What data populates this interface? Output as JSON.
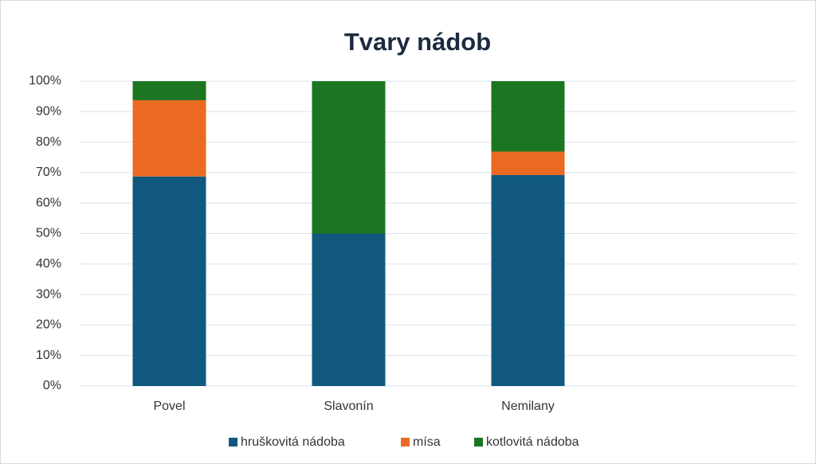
{
  "chart_data": {
    "type": "bar",
    "stacked": true,
    "title": "Tvary nádob",
    "categories": [
      "Povel",
      "Slavonín",
      "Nemilany",
      null
    ],
    "series": [
      {
        "name": "hruškovitá nádoba",
        "color": "#11587f",
        "values": [
          68.75,
          50,
          69.2,
          null
        ]
      },
      {
        "name": "mísa",
        "color": "#ea6a22",
        "values": [
          25,
          0,
          7.7,
          null
        ]
      },
      {
        "name": "kotlovitá  nádoba",
        "color": "#1c7521",
        "values": [
          6.25,
          50,
          23.1,
          null
        ]
      }
    ],
    "ylim": [
      0,
      100
    ],
    "yticks": [
      {
        "value": 0,
        "label": "0%"
      },
      {
        "value": 10,
        "label": "10%"
      },
      {
        "value": 20,
        "label": "20%"
      },
      {
        "value": 30,
        "label": "30%"
      },
      {
        "value": 40,
        "label": "40%"
      },
      {
        "value": 50,
        "label": "50%"
      },
      {
        "value": 60,
        "label": "60%"
      },
      {
        "value": 70,
        "label": "70%"
      },
      {
        "value": 80,
        "label": "80%"
      },
      {
        "value": 90,
        "label": "90%"
      },
      {
        "value": 100,
        "label": "100%"
      }
    ],
    "grid": true,
    "legend": "bottom"
  }
}
